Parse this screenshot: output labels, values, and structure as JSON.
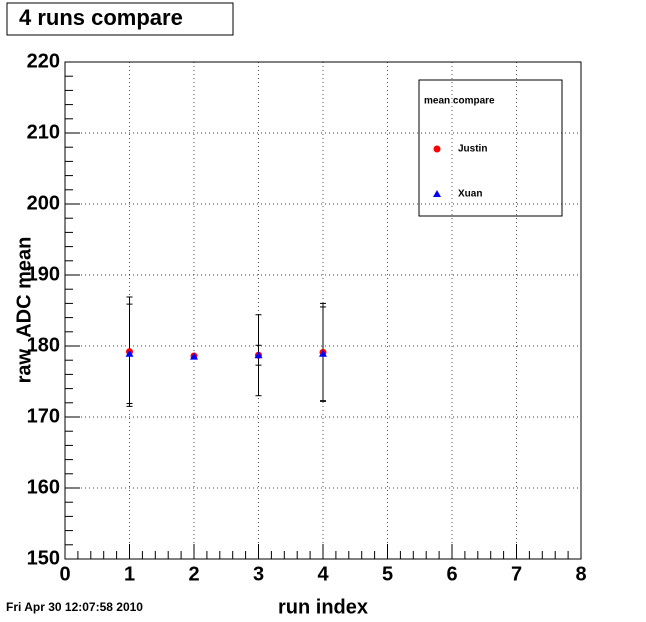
{
  "chart_data": {
    "type": "errorbar-scatter",
    "title": "4 runs compare",
    "x_label": "run index",
    "y_label": "raw_ADC mean",
    "timestamp": "Fri Apr 30 12:07:58 2010",
    "legend_title": "mean compare",
    "legend_position": "upper right",
    "grid": true,
    "xlim": [
      0,
      8
    ],
    "xticks": [
      0,
      1,
      2,
      3,
      4,
      5,
      6,
      7,
      8
    ],
    "ylim": [
      150,
      220
    ],
    "yticks": [
      150,
      160,
      170,
      180,
      190,
      200,
      210,
      220
    ],
    "x": [
      1,
      2,
      3,
      4
    ],
    "series": [
      {
        "name": "Justin",
        "color": "#ff0000",
        "marker": "circle",
        "values": [
          179.2,
          178.6,
          178.7,
          179.1
        ],
        "errors": [
          7.7,
          0.2,
          5.7,
          6.9
        ]
      },
      {
        "name": "Xuan",
        "color": "#0000ff",
        "marker": "triangle",
        "values": [
          178.9,
          178.5,
          178.7,
          178.9
        ],
        "errors": [
          7.0,
          0.2,
          1.4,
          6.6
        ]
      }
    ]
  }
}
